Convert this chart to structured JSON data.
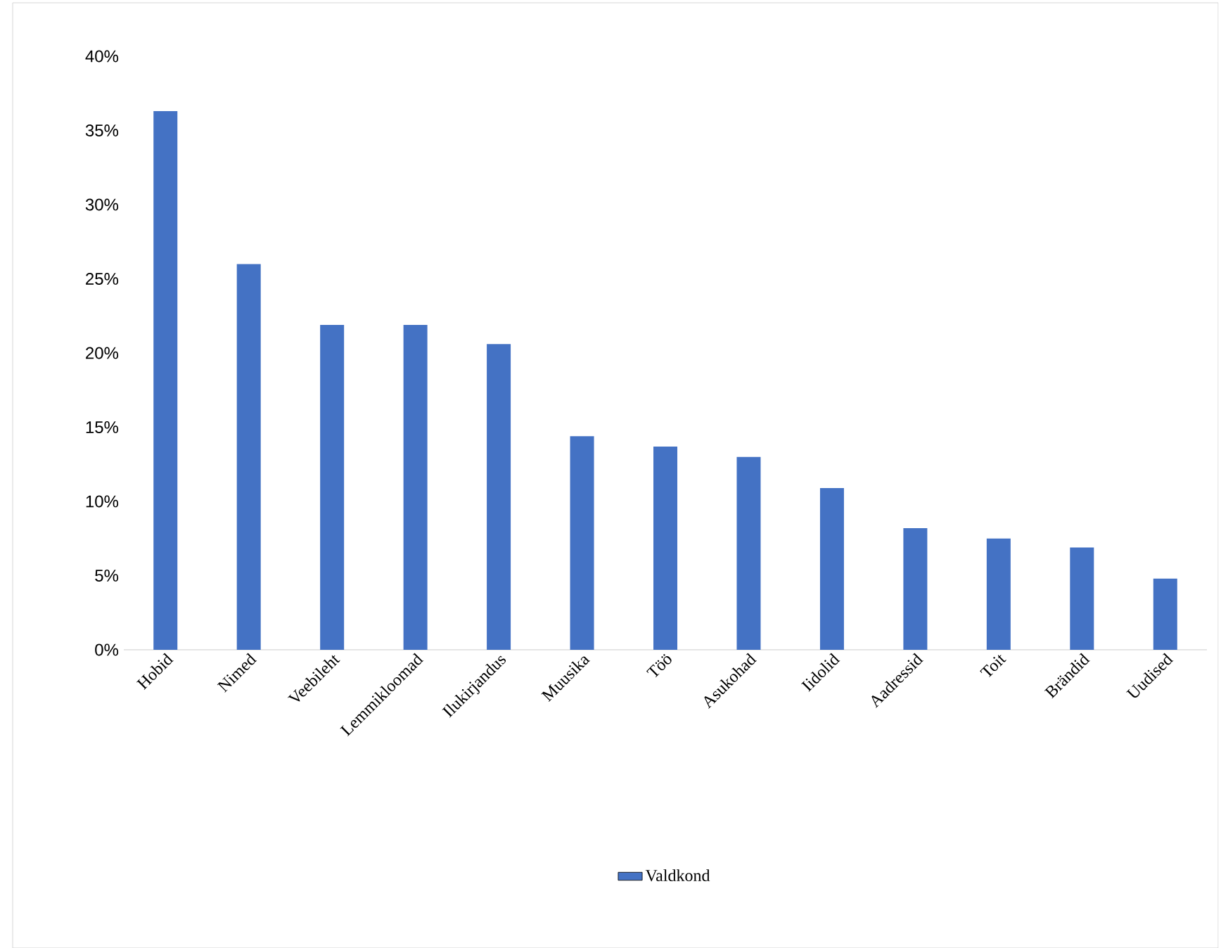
{
  "chart_data": {
    "type": "bar",
    "categories": [
      "Hobid",
      "Nimed",
      "Veebileht",
      "Lemmikloomad",
      "Ilukirjandus",
      "Muusika",
      "Töö",
      "Asukohad",
      "Iidolid",
      "Aadressid",
      "Toit",
      "Brändid",
      "Uudised"
    ],
    "series": [
      {
        "name": "Valdkond",
        "color": "#4472c4",
        "values": [
          36.3,
          26.0,
          21.9,
          21.9,
          20.6,
          14.4,
          13.7,
          13.0,
          10.9,
          8.2,
          7.5,
          6.9,
          4.8
        ]
      }
    ],
    "ylim": [
      0,
      40
    ],
    "yticks": [
      {
        "value": 0,
        "label": "0%"
      },
      {
        "value": 5,
        "label": "5%"
      },
      {
        "value": 10,
        "label": "10%"
      },
      {
        "value": 15,
        "label": "15%"
      },
      {
        "value": 20,
        "label": "20%"
      },
      {
        "value": 25,
        "label": "25%"
      },
      {
        "value": 30,
        "label": "30%"
      },
      {
        "value": 35,
        "label": "35%"
      },
      {
        "value": 40,
        "label": "40%"
      }
    ],
    "legend": "bottom"
  }
}
